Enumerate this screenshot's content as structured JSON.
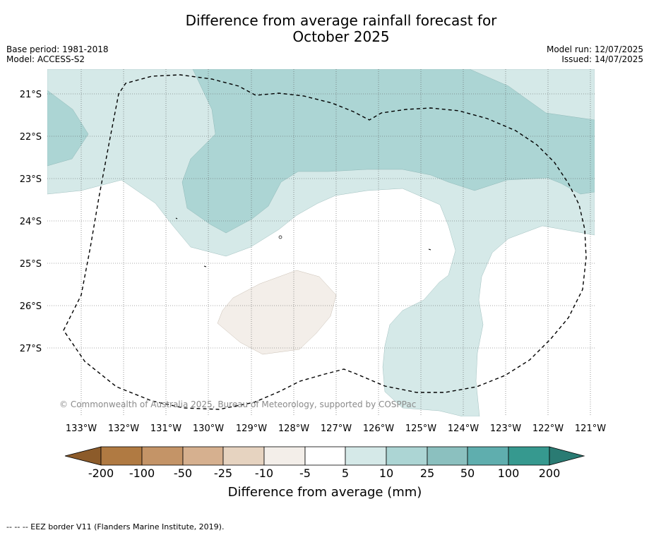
{
  "title": {
    "line1": "Difference from average rainfall forecast for",
    "line2": "October 2025"
  },
  "meta": {
    "base_period": "Base period: 1981-2018",
    "model": "Model: ACCESS-S2",
    "model_run": "Model run: 12/07/2025",
    "issued": "Issued: 14/07/2025"
  },
  "map": {
    "latitude_labels": [
      "21°S",
      "22°S",
      "23°S",
      "24°S",
      "25°S",
      "26°S",
      "27°S"
    ],
    "longitude_labels": [
      "133°W",
      "132°W",
      "131°W",
      "130°W",
      "129°W",
      "128°W",
      "127°W",
      "126°W",
      "125°W",
      "124°W",
      "123°W",
      "122°W",
      "121°W"
    ],
    "copyright": "© Commonwealth of Australia 2025, Bureau of Meteorology, supported by COSPPac",
    "fill_colors": {
      "light_teal": "#d5e9e8",
      "mid_teal": "#acd5d4",
      "light_brown": "#f3eee9"
    }
  },
  "colorbar": {
    "tick_labels": [
      "-200",
      "-100",
      "-50",
      "-25",
      "-10",
      "-5",
      "5",
      "10",
      "25",
      "50",
      "100",
      "200"
    ],
    "colors": [
      "#8c5b2a",
      "#b07a42",
      "#c49467",
      "#d6b08f",
      "#e6d3c0",
      "#f3eee9",
      "#ffffff",
      "#d5e9e8",
      "#acd5d4",
      "#8bc0bf",
      "#5faeae",
      "#36998f",
      "#2a7b73"
    ],
    "label": "Difference from average (mm)"
  },
  "footnote": "--  --  -- EEZ border V11 (Flanders Marine Institute, 2019)."
}
